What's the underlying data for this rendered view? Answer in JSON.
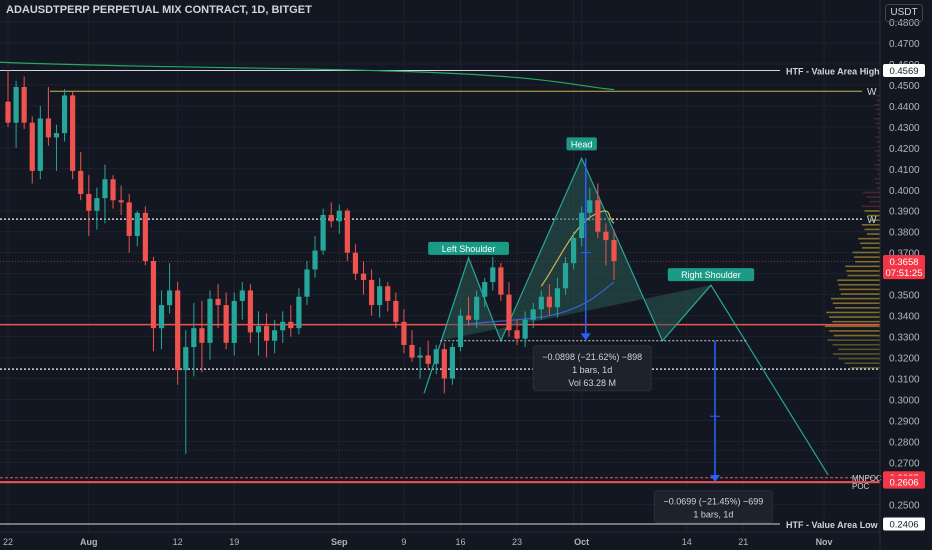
{
  "header": {
    "symbol_line": "ADAUSDTPERP PERPETUAL MIX CONTRACT, 1D, BITGET",
    "currency_button": "USDT"
  },
  "colors": {
    "background": "#131722",
    "up": "#26a69a",
    "down": "#ef5350",
    "grid": "#1e222d",
    "pattern_fill": "#2a5a52",
    "pattern_line": "#26a69a",
    "measure": "#2962ff",
    "yellow_line": "#c8b84a",
    "green_ma": "#22ab60",
    "blue_ma": "#3c5fd6"
  },
  "chart_data": {
    "type": "candlestick",
    "y_axis": {
      "range": [
        0.2368,
        0.4905
      ],
      "ticks": [
        "0.4800",
        "0.4700",
        "0.4600",
        "0.4500",
        "0.4400",
        "0.4300",
        "0.4200",
        "0.4100",
        "0.4000",
        "0.3900",
        "0.3800",
        "0.3700",
        "0.3600",
        "0.3500",
        "0.3400",
        "0.3300",
        "0.3200",
        "0.3100",
        "0.3000",
        "0.2900",
        "0.2800",
        "0.2700",
        "0.2600",
        "0.2500"
      ]
    },
    "x_axis": {
      "ticks": [
        {
          "label": "22",
          "day": 0
        },
        {
          "label": "Aug",
          "day": 10
        },
        {
          "label": "12",
          "day": 21
        },
        {
          "label": "19",
          "day": 28
        },
        {
          "label": "Sep",
          "day": 41
        },
        {
          "label": "9",
          "day": 49
        },
        {
          "label": "16",
          "day": 56
        },
        {
          "label": "23",
          "day": 63
        },
        {
          "label": "Sep",
          "day": 70,
          "hidden": true
        },
        {
          "label": "Oct",
          "day": 71
        },
        {
          "label": "14",
          "day": 84
        },
        {
          "label": "21",
          "day": 91
        },
        {
          "label": "Nov",
          "day": 101
        }
      ]
    },
    "price_labels": [
      {
        "text": "0.4569",
        "value": 0.4569,
        "style": "white"
      },
      {
        "text": "0.3658",
        "value": 0.3658,
        "style": "red"
      },
      {
        "text": "07:51:25",
        "value": 0.3605,
        "style": "red"
      },
      {
        "text": "0.2627",
        "value": 0.2627,
        "style": "red"
      },
      {
        "text": "0.2606",
        "value": 0.2606,
        "style": "red"
      },
      {
        "text": "0.2406",
        "value": 0.2406,
        "style": "white"
      }
    ],
    "lines": {
      "htf_high": {
        "value": 0.4569,
        "label": "HTF - Value Area High"
      },
      "htf_low": {
        "value": 0.2406,
        "label": "HTF - Value Area Low"
      },
      "weekly_high": {
        "value": 0.447,
        "label": "W"
      },
      "weekly_mid": {
        "value": 0.386,
        "label": "W"
      },
      "support_red": 0.3357,
      "dotted_low": 0.3145,
      "poc": {
        "value": 0.2606,
        "labels": [
          "MNPOC",
          "POC"
        ]
      }
    },
    "pattern": {
      "head_label": "Head",
      "left_shoulder_label": "Left Shoulder",
      "right_shoulder_label": "Right Shoulder"
    },
    "measurements": [
      {
        "lines": [
          "−0.0898 (−21.62%) −898",
          "1 bars, 1d",
          "Vol 63.28 M"
        ]
      },
      {
        "lines": [
          "−0.0699 (−21.45%) −699",
          "1 bars, 1d"
        ]
      }
    ],
    "candles": [
      [
        0.442,
        0.457,
        0.43,
        0.432
      ],
      [
        0.432,
        0.452,
        0.42,
        0.449
      ],
      [
        0.449,
        0.454,
        0.429,
        0.432
      ],
      [
        0.432,
        0.435,
        0.403,
        0.409
      ],
      [
        0.409,
        0.44,
        0.405,
        0.434
      ],
      [
        0.434,
        0.449,
        0.421,
        0.425
      ],
      [
        0.425,
        0.431,
        0.409,
        0.427
      ],
      [
        0.427,
        0.448,
        0.423,
        0.445
      ],
      [
        0.445,
        0.447,
        0.405,
        0.409
      ],
      [
        0.409,
        0.418,
        0.395,
        0.398
      ],
      [
        0.398,
        0.407,
        0.378,
        0.39
      ],
      [
        0.39,
        0.401,
        0.381,
        0.396
      ],
      [
        0.396,
        0.412,
        0.384,
        0.405
      ],
      [
        0.405,
        0.407,
        0.391,
        0.395
      ],
      [
        0.395,
        0.402,
        0.388,
        0.394
      ],
      [
        0.394,
        0.398,
        0.37,
        0.378
      ],
      [
        0.378,
        0.39,
        0.373,
        0.389
      ],
      [
        0.389,
        0.392,
        0.364,
        0.366
      ],
      [
        0.366,
        0.368,
        0.323,
        0.334
      ],
      [
        0.334,
        0.352,
        0.324,
        0.345
      ],
      [
        0.345,
        0.365,
        0.341,
        0.352
      ],
      [
        0.352,
        0.356,
        0.307,
        0.314
      ],
      [
        0.314,
        0.333,
        0.274,
        0.325
      ],
      [
        0.325,
        0.346,
        0.311,
        0.334
      ],
      [
        0.334,
        0.347,
        0.313,
        0.327
      ],
      [
        0.327,
        0.352,
        0.319,
        0.348
      ],
      [
        0.348,
        0.355,
        0.334,
        0.345
      ],
      [
        0.345,
        0.351,
        0.324,
        0.327
      ],
      [
        0.327,
        0.351,
        0.321,
        0.347
      ],
      [
        0.347,
        0.356,
        0.338,
        0.352
      ],
      [
        0.352,
        0.355,
        0.327,
        0.332
      ],
      [
        0.332,
        0.342,
        0.321,
        0.335
      ],
      [
        0.335,
        0.341,
        0.32,
        0.328
      ],
      [
        0.328,
        0.338,
        0.322,
        0.333
      ],
      [
        0.333,
        0.342,
        0.327,
        0.337
      ],
      [
        0.337,
        0.345,
        0.33,
        0.334
      ],
      [
        0.334,
        0.353,
        0.331,
        0.349
      ],
      [
        0.349,
        0.366,
        0.345,
        0.362
      ],
      [
        0.362,
        0.378,
        0.358,
        0.371
      ],
      [
        0.371,
        0.391,
        0.369,
        0.388
      ],
      [
        0.388,
        0.394,
        0.382,
        0.385
      ],
      [
        0.385,
        0.393,
        0.379,
        0.39
      ],
      [
        0.39,
        0.391,
        0.366,
        0.37
      ],
      [
        0.37,
        0.374,
        0.357,
        0.36
      ],
      [
        0.36,
        0.366,
        0.35,
        0.357
      ],
      [
        0.357,
        0.362,
        0.34,
        0.345
      ],
      [
        0.345,
        0.358,
        0.339,
        0.354
      ],
      [
        0.354,
        0.356,
        0.342,
        0.347
      ],
      [
        0.347,
        0.351,
        0.334,
        0.337
      ],
      [
        0.337,
        0.343,
        0.322,
        0.326
      ],
      [
        0.326,
        0.333,
        0.318,
        0.32
      ],
      [
        0.32,
        0.325,
        0.31,
        0.321
      ],
      [
        0.321,
        0.328,
        0.315,
        0.317
      ],
      [
        0.317,
        0.326,
        0.312,
        0.324
      ],
      [
        0.324,
        0.327,
        0.303,
        0.31
      ],
      [
        0.31,
        0.327,
        0.307,
        0.325
      ],
      [
        0.325,
        0.343,
        0.323,
        0.34
      ],
      [
        0.34,
        0.349,
        0.335,
        0.338
      ],
      [
        0.338,
        0.352,
        0.334,
        0.349
      ],
      [
        0.349,
        0.358,
        0.344,
        0.356
      ],
      [
        0.356,
        0.368,
        0.352,
        0.363
      ],
      [
        0.363,
        0.365,
        0.347,
        0.35
      ],
      [
        0.35,
        0.356,
        0.33,
        0.333
      ],
      [
        0.333,
        0.338,
        0.326,
        0.329
      ],
      [
        0.329,
        0.342,
        0.325,
        0.338
      ],
      [
        0.338,
        0.346,
        0.334,
        0.343
      ],
      [
        0.343,
        0.352,
        0.338,
        0.349
      ],
      [
        0.349,
        0.355,
        0.34,
        0.344
      ],
      [
        0.344,
        0.358,
        0.339,
        0.353
      ],
      [
        0.353,
        0.368,
        0.35,
        0.365
      ],
      [
        0.365,
        0.38,
        0.362,
        0.377
      ],
      [
        0.377,
        0.392,
        0.373,
        0.389
      ],
      [
        0.389,
        0.401,
        0.385,
        0.395
      ],
      [
        0.395,
        0.403,
        0.377,
        0.38
      ],
      [
        0.38,
        0.384,
        0.364,
        0.376
      ],
      [
        0.376,
        0.381,
        0.357,
        0.366
      ]
    ]
  }
}
